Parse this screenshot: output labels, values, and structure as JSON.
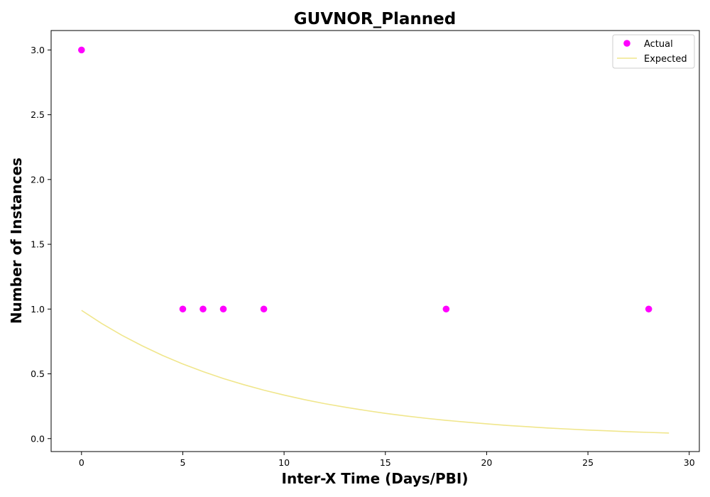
{
  "chart_data": {
    "type": "scatter",
    "title": "GUVNOR_Planned",
    "xlabel": "Inter-X Time (Days/PBI)",
    "ylabel": "Number of Instances",
    "xlim": [
      -1.5,
      30.5
    ],
    "ylim": [
      -0.1,
      3.15
    ],
    "xticks": [
      0,
      5,
      10,
      15,
      20,
      25,
      30
    ],
    "yticks": [
      0.0,
      0.5,
      1.0,
      1.5,
      2.0,
      2.5,
      3.0
    ],
    "xtick_labels": [
      "0",
      "5",
      "10",
      "15",
      "20",
      "25",
      "30"
    ],
    "ytick_labels": [
      "0.0",
      "0.5",
      "1.0",
      "1.5",
      "2.0",
      "2.5",
      "3.0"
    ],
    "grid": false,
    "legend_position": "top-right",
    "series": [
      {
        "name": "Actual",
        "kind": "scatter",
        "color": "#ff00ff",
        "x": [
          0,
          5,
          6,
          7,
          9,
          18,
          28
        ],
        "y": [
          3,
          1,
          1,
          1,
          1,
          1,
          1
        ]
      },
      {
        "name": "Expected",
        "kind": "line",
        "color": "#f0e68c",
        "x": [
          0,
          1,
          2,
          3,
          4,
          5,
          6,
          7,
          8,
          9,
          10,
          11,
          12,
          13,
          14,
          15,
          16,
          17,
          18,
          19,
          20,
          21,
          22,
          23,
          24,
          25,
          26,
          27,
          28,
          29
        ],
        "y": [
          0.99,
          0.888,
          0.797,
          0.716,
          0.642,
          0.576,
          0.517,
          0.464,
          0.417,
          0.374,
          0.336,
          0.301,
          0.27,
          0.243,
          0.218,
          0.195,
          0.175,
          0.157,
          0.141,
          0.127,
          0.114,
          0.102,
          0.092,
          0.082,
          0.074,
          0.066,
          0.06,
          0.053,
          0.048,
          0.043
        ]
      }
    ]
  }
}
